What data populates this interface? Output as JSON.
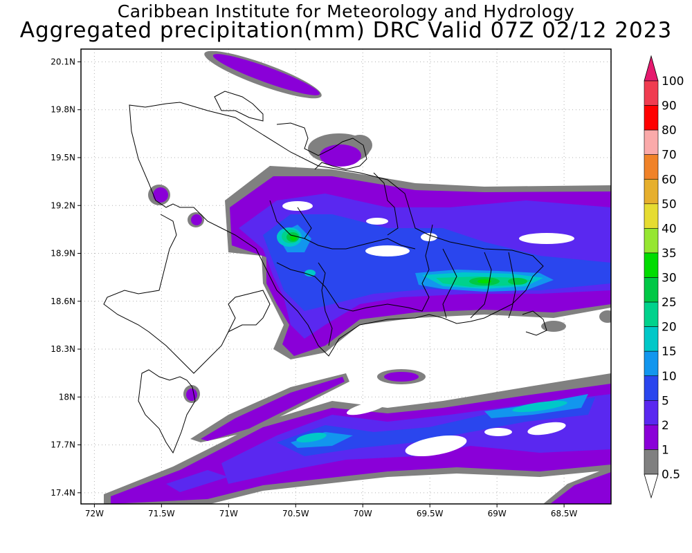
{
  "header": {
    "institute": "Caribbean Institute for Meteorology and Hydrology",
    "product": "Aggregated precipitation(mm) DRC Valid 07Z 02/12 2023"
  },
  "map": {
    "lon_range": [
      -72.1,
      -68.15
    ],
    "lat_range": [
      17.33,
      20.18
    ],
    "x_ticks": [
      {
        "value": -72,
        "label": "72W"
      },
      {
        "value": -71.5,
        "label": "71.5W"
      },
      {
        "value": -71,
        "label": "71W"
      },
      {
        "value": -70.5,
        "label": "70.5W"
      },
      {
        "value": -70,
        "label": "70W"
      },
      {
        "value": -69.5,
        "label": "69.5W"
      },
      {
        "value": -69,
        "label": "69W"
      },
      {
        "value": -68.5,
        "label": "68.5W"
      }
    ],
    "y_ticks": [
      {
        "value": 17.4,
        "label": "17.4N"
      },
      {
        "value": 17.7,
        "label": "17.7N"
      },
      {
        "value": 18.0,
        "label": "18N"
      },
      {
        "value": 18.3,
        "label": "18.3N"
      },
      {
        "value": 18.6,
        "label": "18.6N"
      },
      {
        "value": 18.9,
        "label": "18.9N"
      },
      {
        "value": 19.2,
        "label": "19.2N"
      },
      {
        "value": 19.5,
        "label": "19.5N"
      },
      {
        "value": 19.8,
        "label": "19.8N"
      },
      {
        "value": 20.1,
        "label": "20.1N"
      }
    ],
    "grid": true
  },
  "colorbar": {
    "levels": [
      {
        "label": "0.5",
        "color": "#ffffff"
      },
      {
        "label": "1",
        "color": "#808080"
      },
      {
        "label": "2",
        "color": "#8a00d8"
      },
      {
        "label": "5",
        "color": "#5a28f0"
      },
      {
        "label": "10",
        "color": "#2a46ee"
      },
      {
        "label": "15",
        "color": "#1296ee"
      },
      {
        "label": "20",
        "color": "#00c8c8"
      },
      {
        "label": "25",
        "color": "#00d28c"
      },
      {
        "label": "30",
        "color": "#00c846"
      },
      {
        "label": "35",
        "color": "#00dc00"
      },
      {
        "label": "40",
        "color": "#96e632"
      },
      {
        "label": "50",
        "color": "#e6dc32"
      },
      {
        "label": "60",
        "color": "#e6af2d"
      },
      {
        "label": "70",
        "color": "#f08228"
      },
      {
        "label": "80",
        "color": "#faaaaa"
      },
      {
        "label": "90",
        "color": "#ff0000"
      },
      {
        "label": "100",
        "color": "#f03c50"
      }
    ],
    "top_arrow_color": "#e6196e"
  }
}
